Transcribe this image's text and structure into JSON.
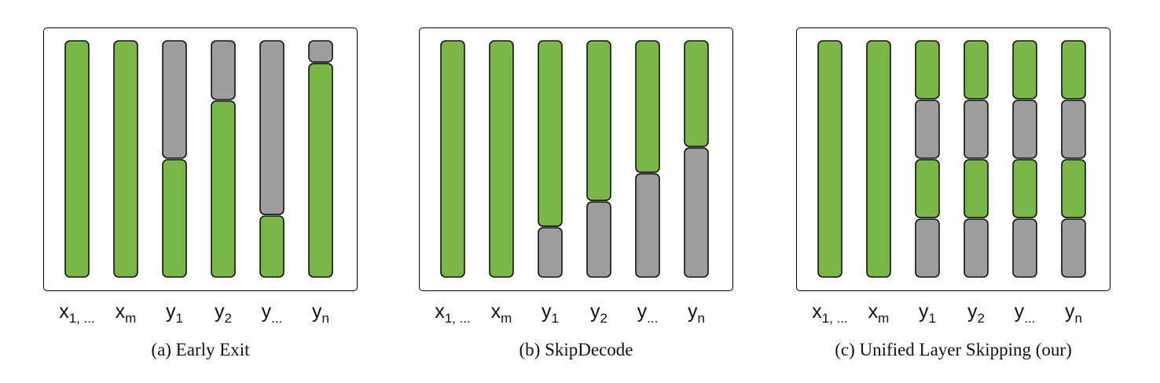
{
  "colors": {
    "active": "#7ab648",
    "skipped": "#9e9e9e"
  },
  "panels": [
    {
      "caption": "(a) Early Exit",
      "columns": [
        {
          "base": "x",
          "sub": "1, ...",
          "segments": [
            {
              "state": "active",
              "frac": 1.0
            }
          ]
        },
        {
          "base": "x",
          "sub": "m",
          "segments": [
            {
              "state": "active",
              "frac": 1.0
            }
          ]
        },
        {
          "base": "y",
          "sub": "1",
          "segments": [
            {
              "state": "skipped",
              "frac": 0.5
            },
            {
              "state": "active",
              "frac": 0.5
            }
          ]
        },
        {
          "base": "y",
          "sub": "2",
          "segments": [
            {
              "state": "skipped",
              "frac": 0.25
            },
            {
              "state": "active",
              "frac": 0.75
            }
          ]
        },
        {
          "base": "y",
          "sub": "...",
          "segments": [
            {
              "state": "skipped",
              "frac": 0.74
            },
            {
              "state": "active",
              "frac": 0.26
            }
          ]
        },
        {
          "base": "y",
          "sub": "n",
          "segments": [
            {
              "state": "skipped",
              "frac": 0.09
            },
            {
              "state": "active",
              "frac": 0.91
            }
          ]
        }
      ]
    },
    {
      "caption": "(b) SkipDecode",
      "columns": [
        {
          "base": "x",
          "sub": "1, ...",
          "segments": [
            {
              "state": "active",
              "frac": 1.0
            }
          ]
        },
        {
          "base": "x",
          "sub": "m",
          "segments": [
            {
              "state": "active",
              "frac": 1.0
            }
          ]
        },
        {
          "base": "y",
          "sub": "1",
          "segments": [
            {
              "state": "active",
              "frac": 0.79
            },
            {
              "state": "skipped",
              "frac": 0.21
            }
          ]
        },
        {
          "base": "y",
          "sub": "2",
          "segments": [
            {
              "state": "active",
              "frac": 0.68
            },
            {
              "state": "skipped",
              "frac": 0.32
            }
          ]
        },
        {
          "base": "y",
          "sub": "...",
          "segments": [
            {
              "state": "active",
              "frac": 0.56
            },
            {
              "state": "skipped",
              "frac": 0.44
            }
          ]
        },
        {
          "base": "y",
          "sub": "n",
          "segments": [
            {
              "state": "active",
              "frac": 0.45
            },
            {
              "state": "skipped",
              "frac": 0.55
            }
          ]
        }
      ]
    },
    {
      "caption": "(c) Unified Layer Skipping (our)",
      "columns": [
        {
          "base": "x",
          "sub": "1, ...",
          "segments": [
            {
              "state": "active",
              "frac": 1.0
            }
          ]
        },
        {
          "base": "x",
          "sub": "m",
          "segments": [
            {
              "state": "active",
              "frac": 1.0
            }
          ]
        },
        {
          "base": "y",
          "sub": "1",
          "segments": [
            {
              "state": "active",
              "frac": 0.25
            },
            {
              "state": "skipped",
              "frac": 0.25
            },
            {
              "state": "active",
              "frac": 0.25
            },
            {
              "state": "skipped",
              "frac": 0.25
            }
          ]
        },
        {
          "base": "y",
          "sub": "2",
          "segments": [
            {
              "state": "active",
              "frac": 0.25
            },
            {
              "state": "skipped",
              "frac": 0.25
            },
            {
              "state": "active",
              "frac": 0.25
            },
            {
              "state": "skipped",
              "frac": 0.25
            }
          ]
        },
        {
          "base": "y",
          "sub": "...",
          "segments": [
            {
              "state": "active",
              "frac": 0.25
            },
            {
              "state": "skipped",
              "frac": 0.25
            },
            {
              "state": "active",
              "frac": 0.25
            },
            {
              "state": "skipped",
              "frac": 0.25
            }
          ]
        },
        {
          "base": "y",
          "sub": "n",
          "segments": [
            {
              "state": "active",
              "frac": 0.25
            },
            {
              "state": "skipped",
              "frac": 0.25
            },
            {
              "state": "active",
              "frac": 0.25
            },
            {
              "state": "skipped",
              "frac": 0.25
            }
          ]
        }
      ]
    }
  ]
}
